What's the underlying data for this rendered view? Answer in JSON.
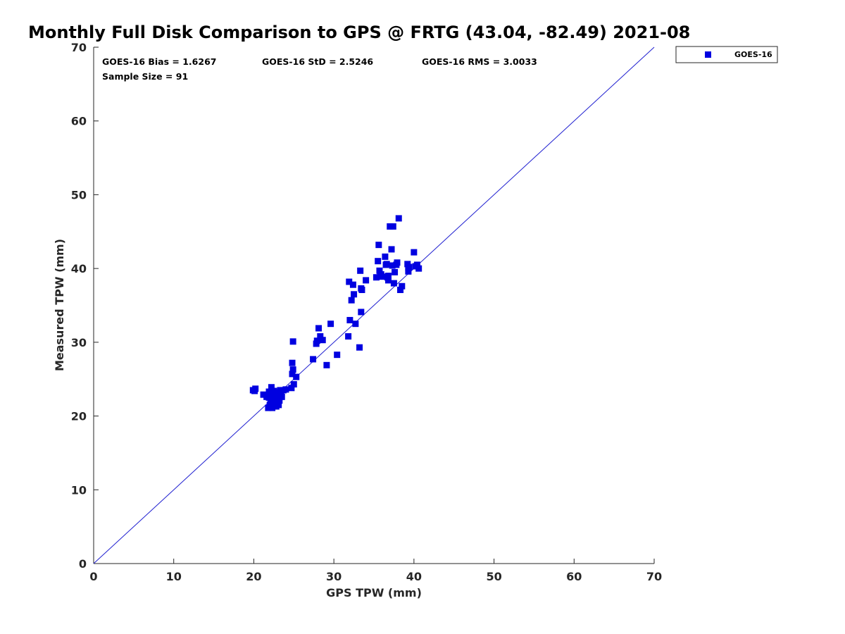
{
  "chart_data": {
    "type": "scatter",
    "title": "Monthly Full Disk Comparison to GPS @ FRTG (43.04, -82.49) 2021-08",
    "xlabel": "GPS TPW (mm)",
    "ylabel": "Measured TPW (mm)",
    "xlim": [
      0,
      70
    ],
    "ylim": [
      0,
      70
    ],
    "xticks": [
      "0",
      "10",
      "20",
      "30",
      "40",
      "50",
      "60",
      "70"
    ],
    "yticks": [
      "0",
      "10",
      "20",
      "30",
      "40",
      "50",
      "60",
      "70"
    ],
    "grid": false,
    "legend_position": "outside-top-right",
    "marker_color": "#0000e0",
    "line_color": "#1f1fd0",
    "reference_line": {
      "from": [
        0,
        0
      ],
      "to": [
        70,
        70
      ]
    },
    "stats": {
      "bias": "GOES-16 Bias = 1.6267",
      "std": "GOES-16 StD = 2.5246",
      "rms": "GOES-16 RMS = 3.0033",
      "sample": "Sample Size = 91"
    },
    "series": [
      {
        "name": "GOES-16",
        "points": [
          [
            19.9,
            23.5
          ],
          [
            20.2,
            23.7
          ],
          [
            20.1,
            23.4
          ],
          [
            21.2,
            22.9
          ],
          [
            21.6,
            22.6
          ],
          [
            21.9,
            23.3
          ],
          [
            21.8,
            21.1
          ],
          [
            22.0,
            21.5
          ],
          [
            22.1,
            22.2
          ],
          [
            22.2,
            23.9
          ],
          [
            22.3,
            21.1
          ],
          [
            22.4,
            22.8
          ],
          [
            22.5,
            23.4
          ],
          [
            22.6,
            21.7
          ],
          [
            22.7,
            22.4
          ],
          [
            22.8,
            21.3
          ],
          [
            22.9,
            22.9
          ],
          [
            23.0,
            23.2
          ],
          [
            23.1,
            21.5
          ],
          [
            23.2,
            22.1
          ],
          [
            23.3,
            23.5
          ],
          [
            23.5,
            22.6
          ],
          [
            23.7,
            23.5
          ],
          [
            24.0,
            23.6
          ],
          [
            22.2,
            22.7
          ],
          [
            22.5,
            21.9
          ],
          [
            22.9,
            22.0
          ],
          [
            21.9,
            22.5
          ],
          [
            22.6,
            23.0
          ],
          [
            23.4,
            22.8
          ],
          [
            24.7,
            23.8
          ],
          [
            25.0,
            24.3
          ],
          [
            24.8,
            25.7
          ],
          [
            25.3,
            25.3
          ],
          [
            24.9,
            26.3
          ],
          [
            24.8,
            27.2
          ],
          [
            24.9,
            30.1
          ],
          [
            27.4,
            27.7
          ],
          [
            27.8,
            29.8
          ],
          [
            27.9,
            30.2
          ],
          [
            28.1,
            31.9
          ],
          [
            28.3,
            30.8
          ],
          [
            28.6,
            30.3
          ],
          [
            29.1,
            26.9
          ],
          [
            29.6,
            32.5
          ],
          [
            30.4,
            28.3
          ],
          [
            31.8,
            30.8
          ],
          [
            32.0,
            33.0
          ],
          [
            31.9,
            38.2
          ],
          [
            32.2,
            35.7
          ],
          [
            32.4,
            37.8
          ],
          [
            32.5,
            36.5
          ],
          [
            32.7,
            32.5
          ],
          [
            33.2,
            29.3
          ],
          [
            33.3,
            39.7
          ],
          [
            33.4,
            37.3
          ],
          [
            33.5,
            37.1
          ],
          [
            33.4,
            34.1
          ],
          [
            34.0,
            38.4
          ],
          [
            35.3,
            38.8
          ],
          [
            35.5,
            41.0
          ],
          [
            35.6,
            43.2
          ],
          [
            35.7,
            39.7
          ],
          [
            35.8,
            39.0
          ],
          [
            36.0,
            38.9
          ],
          [
            36.4,
            41.6
          ],
          [
            36.6,
            40.6
          ],
          [
            36.7,
            38.8
          ],
          [
            36.8,
            39.0
          ],
          [
            36.8,
            38.4
          ],
          [
            37.0,
            45.7
          ],
          [
            37.2,
            42.6
          ],
          [
            37.3,
            40.4
          ],
          [
            37.4,
            45.7
          ],
          [
            37.5,
            38.0
          ],
          [
            37.6,
            39.5
          ],
          [
            37.9,
            40.8
          ],
          [
            38.1,
            46.8
          ],
          [
            38.3,
            37.1
          ],
          [
            38.5,
            37.6
          ],
          [
            39.2,
            40.6
          ],
          [
            39.3,
            39.6
          ],
          [
            39.4,
            40.2
          ],
          [
            40.0,
            42.2
          ],
          [
            40.2,
            40.3
          ],
          [
            40.4,
            40.5
          ],
          [
            40.6,
            40.0
          ],
          [
            39.3,
            40.1
          ],
          [
            37.8,
            40.5
          ],
          [
            36.5,
            40.5
          ],
          [
            35.9,
            39.2
          ]
        ]
      }
    ]
  }
}
